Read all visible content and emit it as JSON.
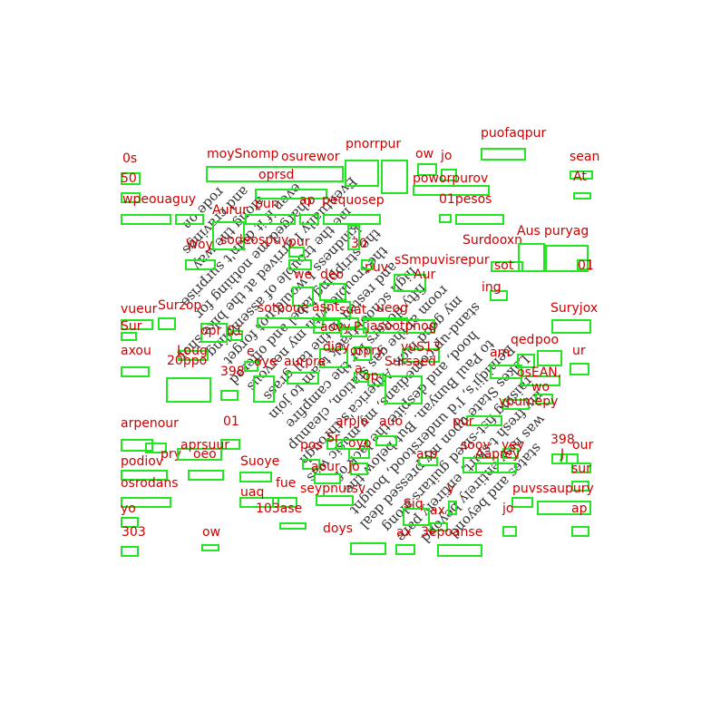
{
  "page_text": {
    "lines": [
      "states and beyond",
      "was now entirely beyond",
      "my fresh t-shirt, entirely pare",
      "raising fist-sized guitars along",
      "Lakes State upon my pressed deal",
      "Bemidji's, I'd understood, bought",
      "to Paul Bunyan. But below the",
      "hood, and despite the lack of",
      "stand-up comedians, my music was",
      "my good luck. America's through",
      "room at the gas station, cleanup",
      "fifty dollars for the campfire",
      "high school track team to join",
      "and rested in the tall grass",
      "the trouble with my nervous",
      "the stripping label and offered",
      "kindness I would not forget",
      "me the trouble of assembling",
      "Eventually I arrived at the bike shop",
      "charged me nothing for",
      "even if it didn't surprise",
      "along the way",
      "and cravings",
      "rode on"
    ]
  },
  "annotations": [
    {
      "label": "0s"
    },
    {
      "label": "moySnomp"
    },
    {
      "label": "osurewor"
    },
    {
      "label": "pnorrpur"
    },
    {
      "label": "ow"
    },
    {
      "label": "jo"
    },
    {
      "label": "puofaqpur"
    },
    {
      "label": "sean"
    },
    {
      "label": "50"
    },
    {
      "label": "oprsd"
    },
    {
      "label": "poworpurov"
    },
    {
      "label": "At"
    },
    {
      "label": "wpeouaguy"
    },
    {
      "label": "pun"
    },
    {
      "label": "ap"
    },
    {
      "label": "pequosep"
    },
    {
      "label": "01pesos"
    },
    {
      "label": "Aurur"
    },
    {
      "label": "sodeospuy"
    },
    {
      "label": "pur"
    },
    {
      "label": "30"
    },
    {
      "label": "Surdooxn"
    },
    {
      "label": "Aus"
    },
    {
      "label": "puryag"
    },
    {
      "label": "Woy"
    },
    {
      "label": "puv"
    },
    {
      "label": "sSmpuvisrepur"
    },
    {
      "label": "sot"
    },
    {
      "label": "01"
    },
    {
      "label": "we"
    },
    {
      "label": "deo"
    },
    {
      "label": "Aur"
    },
    {
      "label": "ing"
    },
    {
      "label": "vueur"
    },
    {
      "label": "Surzop"
    },
    {
      "label": "sotpoue"
    },
    {
      "label": "asnt"
    },
    {
      "label": "suat"
    },
    {
      "label": "ueog"
    },
    {
      "label": "Suryjox"
    },
    {
      "label": "Sur"
    },
    {
      "label": "opr"
    },
    {
      "label": "01"
    },
    {
      "label": "aovy"
    },
    {
      "label": "P"
    },
    {
      "label": "jasootpnog"
    },
    {
      "label": "axou"
    },
    {
      "label": "Loug"
    },
    {
      "label": "e"
    },
    {
      "label": "diay"
    },
    {
      "label": "orpry"
    },
    {
      "label": "vuS13"
    },
    {
      "label": "am"
    },
    {
      "label": "qed"
    },
    {
      "label": "poo"
    },
    {
      "label": "ur"
    },
    {
      "label": "20ppo"
    },
    {
      "label": "398"
    },
    {
      "label": "oye"
    },
    {
      "label": "aurpre"
    },
    {
      "label": "Sursaed"
    },
    {
      "label": "a"
    },
    {
      "label": "op"
    },
    {
      "label": "osEAN,"
    },
    {
      "label": "wo"
    },
    {
      "label": "ypumepy"
    },
    {
      "label": "arpenour"
    },
    {
      "label": "01"
    },
    {
      "label": "arpJo"
    },
    {
      "label": "auo"
    },
    {
      "label": "pur"
    },
    {
      "label": "pry"
    },
    {
      "label": "aprsuur"
    },
    {
      "label": "pos"
    },
    {
      "label": "Sr"
    },
    {
      "label": "oyo"
    },
    {
      "label": "soov"
    },
    {
      "label": "yey"
    },
    {
      "label": "398"
    },
    {
      "label": "our"
    },
    {
      "label": "podiov"
    },
    {
      "label": "oeo"
    },
    {
      "label": "Suoye"
    },
    {
      "label": "aour"
    },
    {
      "label": "Jo"
    },
    {
      "label": "arp"
    },
    {
      "label": "Aaprey"
    },
    {
      "label": "J"
    },
    {
      "label": "sur"
    },
    {
      "label": "osrodans"
    },
    {
      "label": "uaq"
    },
    {
      "label": "fue"
    },
    {
      "label": "seypnursv"
    },
    {
      "label": "y"
    },
    {
      "label": "puv"
    },
    {
      "label": "ssaupury"
    },
    {
      "label": "yo"
    },
    {
      "label": "103ase"
    },
    {
      "label": "Siq"
    },
    {
      "label": "ax"
    },
    {
      "label": "jo"
    },
    {
      "label": "ap"
    },
    {
      "label": "303"
    },
    {
      "label": "ow"
    },
    {
      "label": "doys"
    },
    {
      "label": "ax"
    },
    {
      "label": "3epoanse"
    }
  ]
}
